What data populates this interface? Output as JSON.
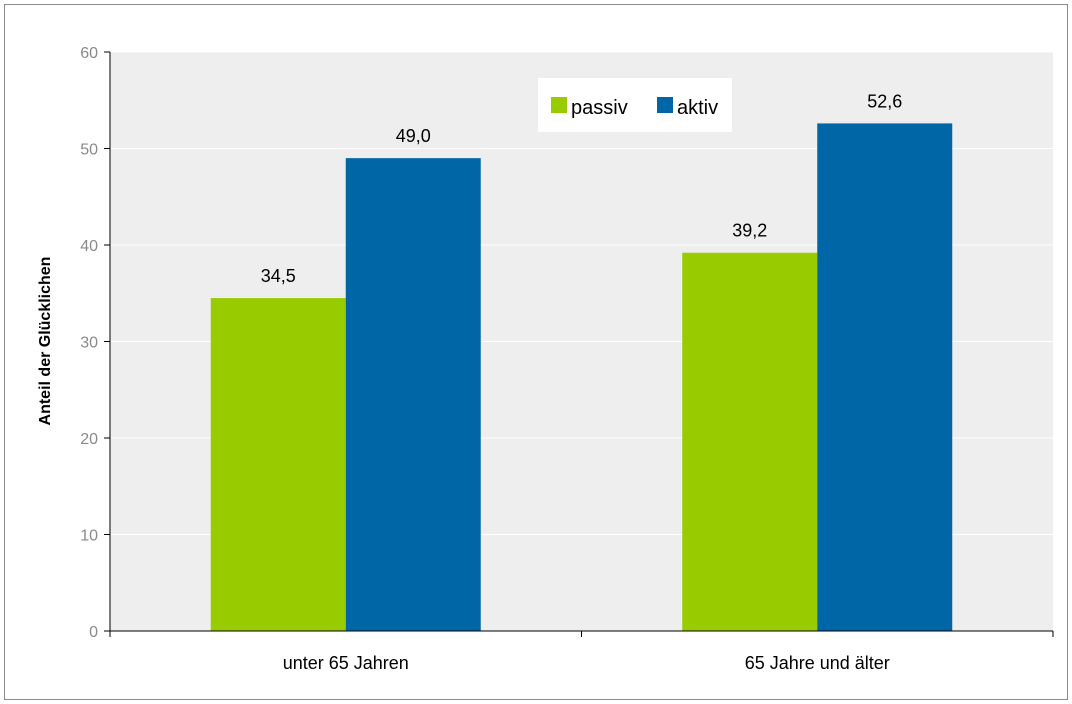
{
  "chart_data": {
    "type": "bar",
    "categories": [
      "unter 65 Jahren",
      "65 Jahre und älter"
    ],
    "series": [
      {
        "name": "passiv",
        "values": [
          34.5,
          39.2
        ],
        "labels": [
          "34,5",
          "39,2"
        ],
        "color": "#99cc00"
      },
      {
        "name": "aktiv",
        "values": [
          49.0,
          52.6
        ],
        "labels": [
          "49,0",
          "52,6"
        ],
        "color": "#0066a6"
      }
    ],
    "ylabel": "Anteil der Glücklichen",
    "ylim": [
      0,
      60
    ],
    "yticks": [
      "0",
      "10",
      "20",
      "30",
      "40",
      "50",
      "60"
    ],
    "grid": true,
    "plot_background": "#eeeeee",
    "legend_position": "top-right inside plot"
  }
}
